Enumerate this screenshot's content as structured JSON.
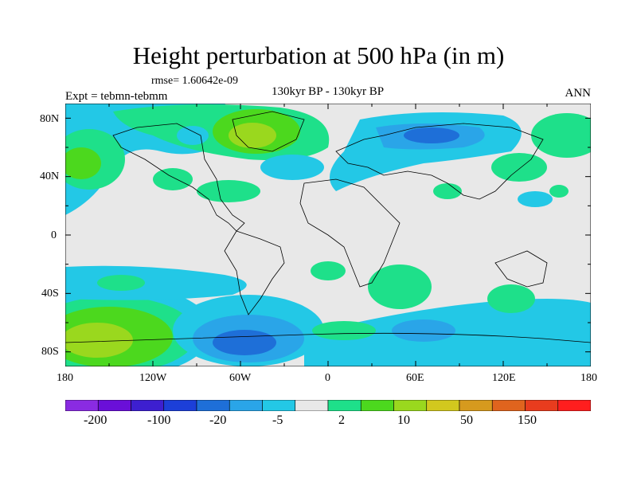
{
  "title": "Height perturbation at 500 hPa (in m)",
  "rmse_label": "rmse= 1.60642e-09",
  "experiment_label": "Expt = tebmn-tebmm",
  "period_label": "130kyr BP - 130kyr BP",
  "season_label": "ANN",
  "lat_ticks": [
    "80N",
    "40N",
    "0",
    "40S",
    "80S"
  ],
  "lon_ticks": [
    "180",
    "120W",
    "60W",
    "0",
    "60E",
    "120E",
    "180"
  ],
  "colorbar": {
    "colors": [
      "#8a2be2",
      "#6a0fd8",
      "#3d1fd0",
      "#1c3fd8",
      "#1e6fd8",
      "#2aa5e8",
      "#23c8e6",
      "#e8e8e8",
      "#1ee08a",
      "#4cd81e",
      "#9ad81e",
      "#d2c81e",
      "#d69a1e",
      "#e0641e",
      "#e83c1e",
      "#ff1e1e"
    ],
    "labels": [
      "-200",
      "-100",
      "-20",
      "-5",
      "2",
      "10",
      "50",
      "150"
    ]
  }
}
